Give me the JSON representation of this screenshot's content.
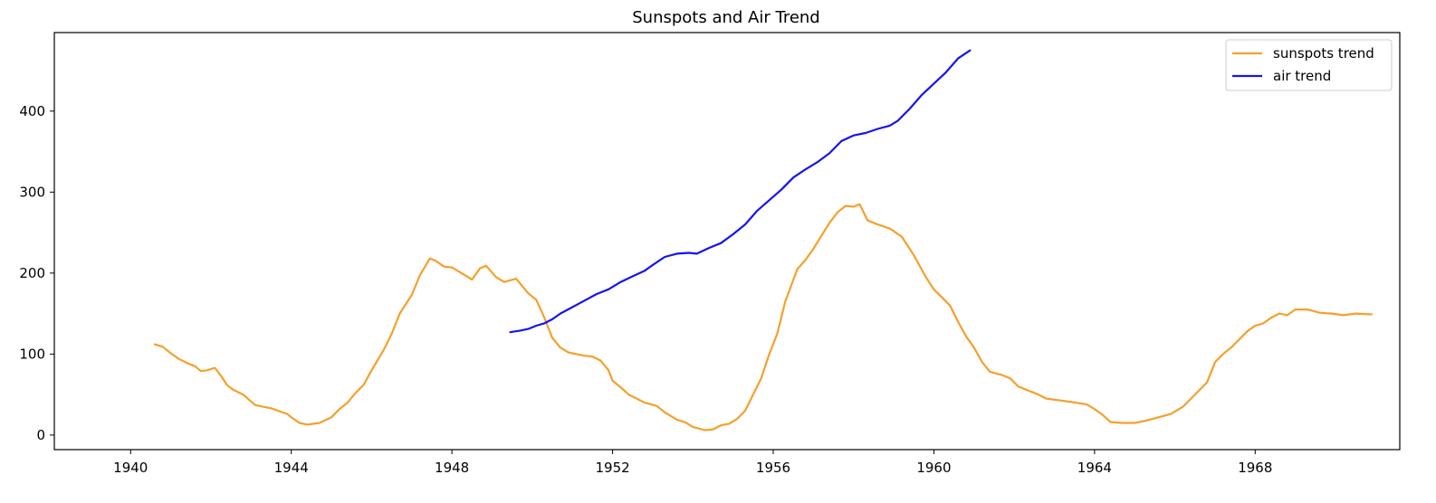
{
  "chart_data": {
    "type": "line",
    "title": "Sunspots and Air Trend",
    "xlabel": "",
    "ylabel": "",
    "xlim": [
      1938.1,
      1971.6
    ],
    "ylim": [
      -18,
      497
    ],
    "x_ticks": [
      1940,
      1944,
      1948,
      1952,
      1956,
      1960,
      1964,
      1968
    ],
    "y_ticks": [
      0,
      100,
      200,
      300,
      400
    ],
    "grid": false,
    "legend_position": "top-right",
    "series": [
      {
        "name": "sunspots trend",
        "color": "#f5a02c",
        "points": [
          [
            1940.6,
            112
          ],
          [
            1940.8,
            109
          ],
          [
            1941.0,
            101
          ],
          [
            1941.2,
            94
          ],
          [
            1941.4,
            89
          ],
          [
            1941.6,
            85
          ],
          [
            1941.75,
            79
          ],
          [
            1941.9,
            80
          ],
          [
            1942.1,
            83
          ],
          [
            1942.25,
            73
          ],
          [
            1942.4,
            62
          ],
          [
            1942.55,
            56
          ],
          [
            1942.8,
            50
          ],
          [
            1943.1,
            37
          ],
          [
            1943.5,
            33
          ],
          [
            1943.9,
            26
          ],
          [
            1944.0,
            22
          ],
          [
            1944.2,
            15
          ],
          [
            1944.4,
            13
          ],
          [
            1944.7,
            15
          ],
          [
            1945.0,
            22
          ],
          [
            1945.2,
            32
          ],
          [
            1945.4,
            40
          ],
          [
            1945.6,
            52
          ],
          [
            1945.8,
            62
          ],
          [
            1946.0,
            80
          ],
          [
            1946.3,
            105
          ],
          [
            1946.5,
            125
          ],
          [
            1946.7,
            150
          ],
          [
            1947.0,
            173
          ],
          [
            1947.2,
            197
          ],
          [
            1947.45,
            218
          ],
          [
            1947.6,
            215
          ],
          [
            1947.8,
            208
          ],
          [
            1948.0,
            207
          ],
          [
            1948.3,
            198
          ],
          [
            1948.5,
            192
          ],
          [
            1948.7,
            206
          ],
          [
            1948.85,
            209
          ],
          [
            1949.1,
            195
          ],
          [
            1949.3,
            189
          ],
          [
            1949.6,
            193
          ],
          [
            1949.9,
            175
          ],
          [
            1950.1,
            167
          ],
          [
            1950.3,
            145
          ],
          [
            1950.5,
            120
          ],
          [
            1950.7,
            108
          ],
          [
            1950.9,
            102
          ],
          [
            1951.1,
            100
          ],
          [
            1951.3,
            98
          ],
          [
            1951.5,
            97
          ],
          [
            1951.7,
            92
          ],
          [
            1951.9,
            80
          ],
          [
            1952.0,
            67
          ],
          [
            1952.2,
            59
          ],
          [
            1952.4,
            50
          ],
          [
            1952.6,
            45
          ],
          [
            1952.8,
            40
          ],
          [
            1953.1,
            36
          ],
          [
            1953.3,
            28
          ],
          [
            1953.6,
            19
          ],
          [
            1953.8,
            16
          ],
          [
            1954.0,
            10
          ],
          [
            1954.3,
            6
          ],
          [
            1954.5,
            7
          ],
          [
            1954.7,
            12
          ],
          [
            1954.9,
            14
          ],
          [
            1955.1,
            20
          ],
          [
            1955.3,
            30
          ],
          [
            1955.5,
            50
          ],
          [
            1955.7,
            70
          ],
          [
            1955.9,
            100
          ],
          [
            1956.1,
            125
          ],
          [
            1956.3,
            165
          ],
          [
            1956.6,
            205
          ],
          [
            1956.8,
            216
          ],
          [
            1957.0,
            230
          ],
          [
            1957.2,
            246
          ],
          [
            1957.4,
            262
          ],
          [
            1957.6,
            275
          ],
          [
            1957.8,
            283
          ],
          [
            1958.0,
            282
          ],
          [
            1958.15,
            285
          ],
          [
            1958.35,
            265
          ],
          [
            1958.6,
            260
          ],
          [
            1958.9,
            255
          ],
          [
            1959.2,
            245
          ],
          [
            1959.5,
            222
          ],
          [
            1959.8,
            195
          ],
          [
            1960.0,
            180
          ],
          [
            1960.2,
            170
          ],
          [
            1960.4,
            160
          ],
          [
            1960.6,
            140
          ],
          [
            1960.8,
            122
          ],
          [
            1961.0,
            108
          ],
          [
            1961.2,
            90
          ],
          [
            1961.4,
            78
          ],
          [
            1961.7,
            74
          ],
          [
            1961.9,
            70
          ],
          [
            1962.1,
            60
          ],
          [
            1962.3,
            56
          ],
          [
            1962.6,
            50
          ],
          [
            1962.8,
            45
          ],
          [
            1963.1,
            43
          ],
          [
            1963.4,
            41
          ],
          [
            1963.8,
            38
          ],
          [
            1964.0,
            32
          ],
          [
            1964.2,
            25
          ],
          [
            1964.4,
            16
          ],
          [
            1964.7,
            15
          ],
          [
            1965.0,
            15
          ],
          [
            1965.3,
            18
          ],
          [
            1965.6,
            22
          ],
          [
            1965.9,
            26
          ],
          [
            1966.2,
            35
          ],
          [
            1966.5,
            50
          ],
          [
            1966.8,
            65
          ],
          [
            1967.0,
            90
          ],
          [
            1967.2,
            100
          ],
          [
            1967.4,
            108
          ],
          [
            1967.6,
            118
          ],
          [
            1967.8,
            128
          ],
          [
            1968.0,
            135
          ],
          [
            1968.2,
            138
          ],
          [
            1968.4,
            145
          ],
          [
            1968.6,
            150
          ],
          [
            1968.8,
            148
          ],
          [
            1969.0,
            155
          ],
          [
            1969.3,
            155
          ],
          [
            1969.6,
            151
          ],
          [
            1969.9,
            150
          ],
          [
            1970.2,
            148
          ],
          [
            1970.5,
            150
          ],
          [
            1970.9,
            149
          ]
        ]
      },
      {
        "name": "air trend",
        "color": "#1414f0",
        "points": [
          [
            1949.45,
            127
          ],
          [
            1949.7,
            129
          ],
          [
            1949.9,
            131
          ],
          [
            1950.1,
            135
          ],
          [
            1950.3,
            138
          ],
          [
            1950.5,
            143
          ],
          [
            1950.7,
            150
          ],
          [
            1951.0,
            158
          ],
          [
            1951.3,
            166
          ],
          [
            1951.6,
            174
          ],
          [
            1951.9,
            180
          ],
          [
            1952.2,
            189
          ],
          [
            1952.5,
            196
          ],
          [
            1952.8,
            203
          ],
          [
            1953.0,
            210
          ],
          [
            1953.3,
            220
          ],
          [
            1953.6,
            224
          ],
          [
            1953.9,
            225
          ],
          [
            1954.1,
            224
          ],
          [
            1954.4,
            231
          ],
          [
            1954.7,
            237
          ],
          [
            1955.0,
            248
          ],
          [
            1955.3,
            260
          ],
          [
            1955.6,
            277
          ],
          [
            1955.9,
            290
          ],
          [
            1956.2,
            303
          ],
          [
            1956.5,
            318
          ],
          [
            1956.8,
            328
          ],
          [
            1957.1,
            337
          ],
          [
            1957.4,
            348
          ],
          [
            1957.7,
            363
          ],
          [
            1958.0,
            370
          ],
          [
            1958.3,
            373
          ],
          [
            1958.6,
            378
          ],
          [
            1958.9,
            382
          ],
          [
            1959.1,
            388
          ],
          [
            1959.4,
            403
          ],
          [
            1959.7,
            420
          ],
          [
            1960.0,
            434
          ],
          [
            1960.3,
            448
          ],
          [
            1960.6,
            465
          ],
          [
            1960.9,
            475
          ]
        ]
      }
    ]
  }
}
